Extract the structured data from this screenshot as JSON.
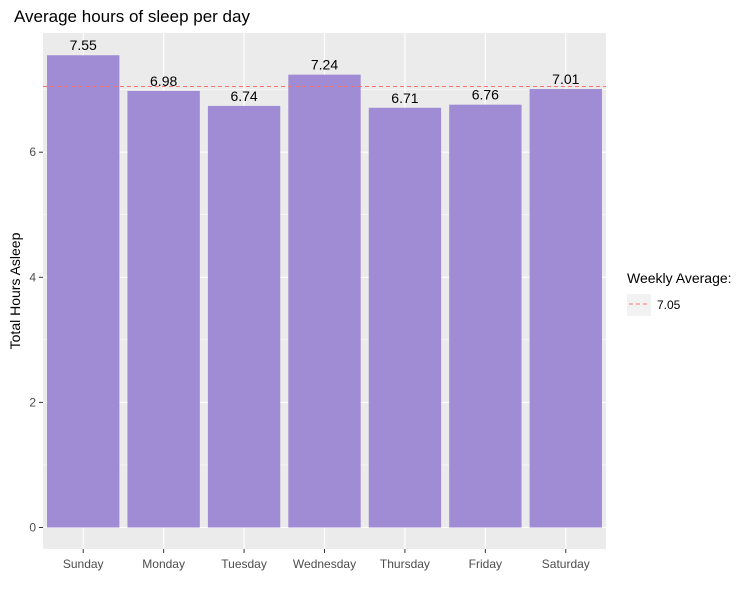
{
  "chart_data": {
    "type": "bar",
    "title": "Average hours of sleep per day",
    "xlabel": "",
    "ylabel": "Total Hours Asleep",
    "categories": [
      "Sunday",
      "Monday",
      "Tuesday",
      "Wednesday",
      "Thursday",
      "Friday",
      "Saturday"
    ],
    "values": [
      7.55,
      6.98,
      6.74,
      7.24,
      6.71,
      6.76,
      7.01
    ],
    "value_labels": [
      "7.55",
      "6.98",
      "6.74",
      "7.24",
      "6.71",
      "6.76",
      "7.01"
    ],
    "ylim": [
      0,
      7.9
    ],
    "yticks": [
      0,
      2,
      4,
      6
    ],
    "ytick_labels": [
      "0",
      "2",
      "4",
      "6"
    ],
    "reference_line": {
      "value": 7.05,
      "style": "dashed",
      "color": "#F8766D"
    },
    "legend": {
      "title": "Weekly Average:",
      "entries": [
        "7.05"
      ],
      "placement": "right"
    },
    "bar_color": "#A08CD4",
    "panel_background": "#EBEBEB",
    "grid": true
  }
}
